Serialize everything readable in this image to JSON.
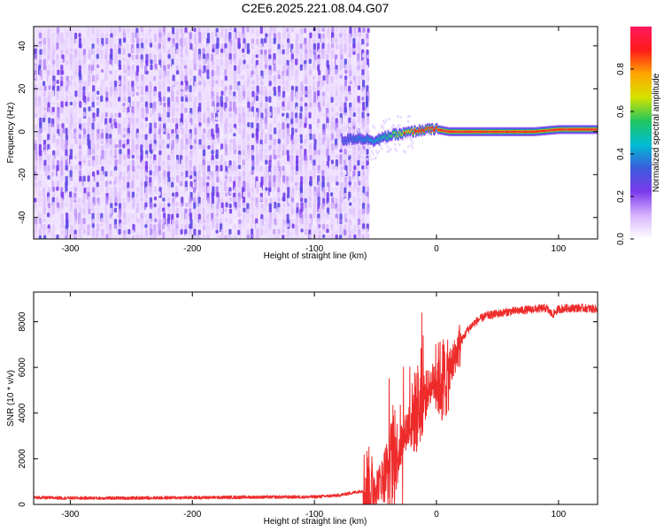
{
  "title": "C2E6.2025.221.08.04.G07",
  "chart_data": [
    {
      "type": "heatmap",
      "xlabel": "Height of straight line (km)",
      "ylabel": "Frequency (Hz)",
      "xlim": [
        -330,
        132
      ],
      "ylim": [
        -50,
        49
      ],
      "xticks": [
        -300,
        -200,
        -100,
        0,
        100
      ],
      "yticks": [
        -40,
        -20,
        0,
        20,
        40
      ],
      "colorbar": {
        "label": "Normalized spectral amplitude",
        "range": [
          0,
          1
        ],
        "ticks": [
          "0.0",
          "0.2",
          "0.4",
          "0.6",
          "0.8"
        ],
        "colormap": [
          "#ffffff",
          "#d8b4fe",
          "#7c3aed",
          "#3b5bdb",
          "#00bcd4",
          "#22c55e",
          "#d4e300",
          "#ffa500",
          "#ff1a1a",
          "#ff1a5e"
        ]
      },
      "noise_region": {
        "x_range": [
          -330,
          -57
        ],
        "freq_range": [
          -50,
          49
        ],
        "amplitude_range": [
          0.05,
          0.25
        ]
      },
      "signal_track": [
        {
          "x": -78,
          "freq": -4,
          "amp": 0.3
        },
        {
          "x": -65,
          "freq": -3,
          "amp": 0.4
        },
        {
          "x": -50,
          "freq": -4,
          "amp": 0.45
        },
        {
          "x": -40,
          "freq": -2,
          "amp": 0.55
        },
        {
          "x": -30,
          "freq": -1,
          "amp": 0.7
        },
        {
          "x": -20,
          "freq": 0,
          "amp": 0.85
        },
        {
          "x": -10,
          "freq": 1,
          "amp": 0.9
        },
        {
          "x": 0,
          "freq": 1,
          "amp": 0.95
        },
        {
          "x": 10,
          "freq": 0,
          "amp": 0.95
        },
        {
          "x": 40,
          "freq": 0,
          "amp": 0.9
        },
        {
          "x": 80,
          "freq": 0,
          "amp": 0.9
        },
        {
          "x": 100,
          "freq": 1,
          "amp": 0.95
        },
        {
          "x": 132,
          "freq": 1,
          "amp": 0.95
        }
      ],
      "series_color": "#8000ff"
    },
    {
      "type": "line",
      "xlabel": "Height of straight line (km)",
      "ylabel": "SNR (10 * v/v)",
      "xlim": [
        -330,
        132
      ],
      "ylim": [
        0,
        9300
      ],
      "xticks": [
        -300,
        -200,
        -100,
        0,
        100
      ],
      "yticks": [
        0,
        2000,
        4000,
        6000,
        8000
      ],
      "series": [
        {
          "color": "#ee2b2b",
          "x": [
            -330,
            -300,
            -250,
            -200,
            -150,
            -100,
            -80,
            -70,
            -60,
            -55,
            -50,
            -45,
            -40,
            -35,
            -30,
            -25,
            -20,
            -15,
            -10,
            -5,
            0,
            5,
            10,
            15,
            20,
            25,
            30,
            35,
            40,
            50,
            60,
            70,
            80,
            90,
            95,
            100,
            110,
            120,
            132
          ],
          "y": [
            300,
            280,
            280,
            300,
            320,
            330,
            400,
            500,
            600,
            700,
            800,
            1100,
            1500,
            2000,
            2500,
            3200,
            3800,
            4300,
            4700,
            5200,
            5500,
            5400,
            5600,
            6500,
            7100,
            7600,
            7900,
            8100,
            8250,
            8350,
            8450,
            8500,
            8550,
            8600,
            8300,
            8550,
            8600,
            8600,
            8550
          ]
        }
      ]
    }
  ]
}
